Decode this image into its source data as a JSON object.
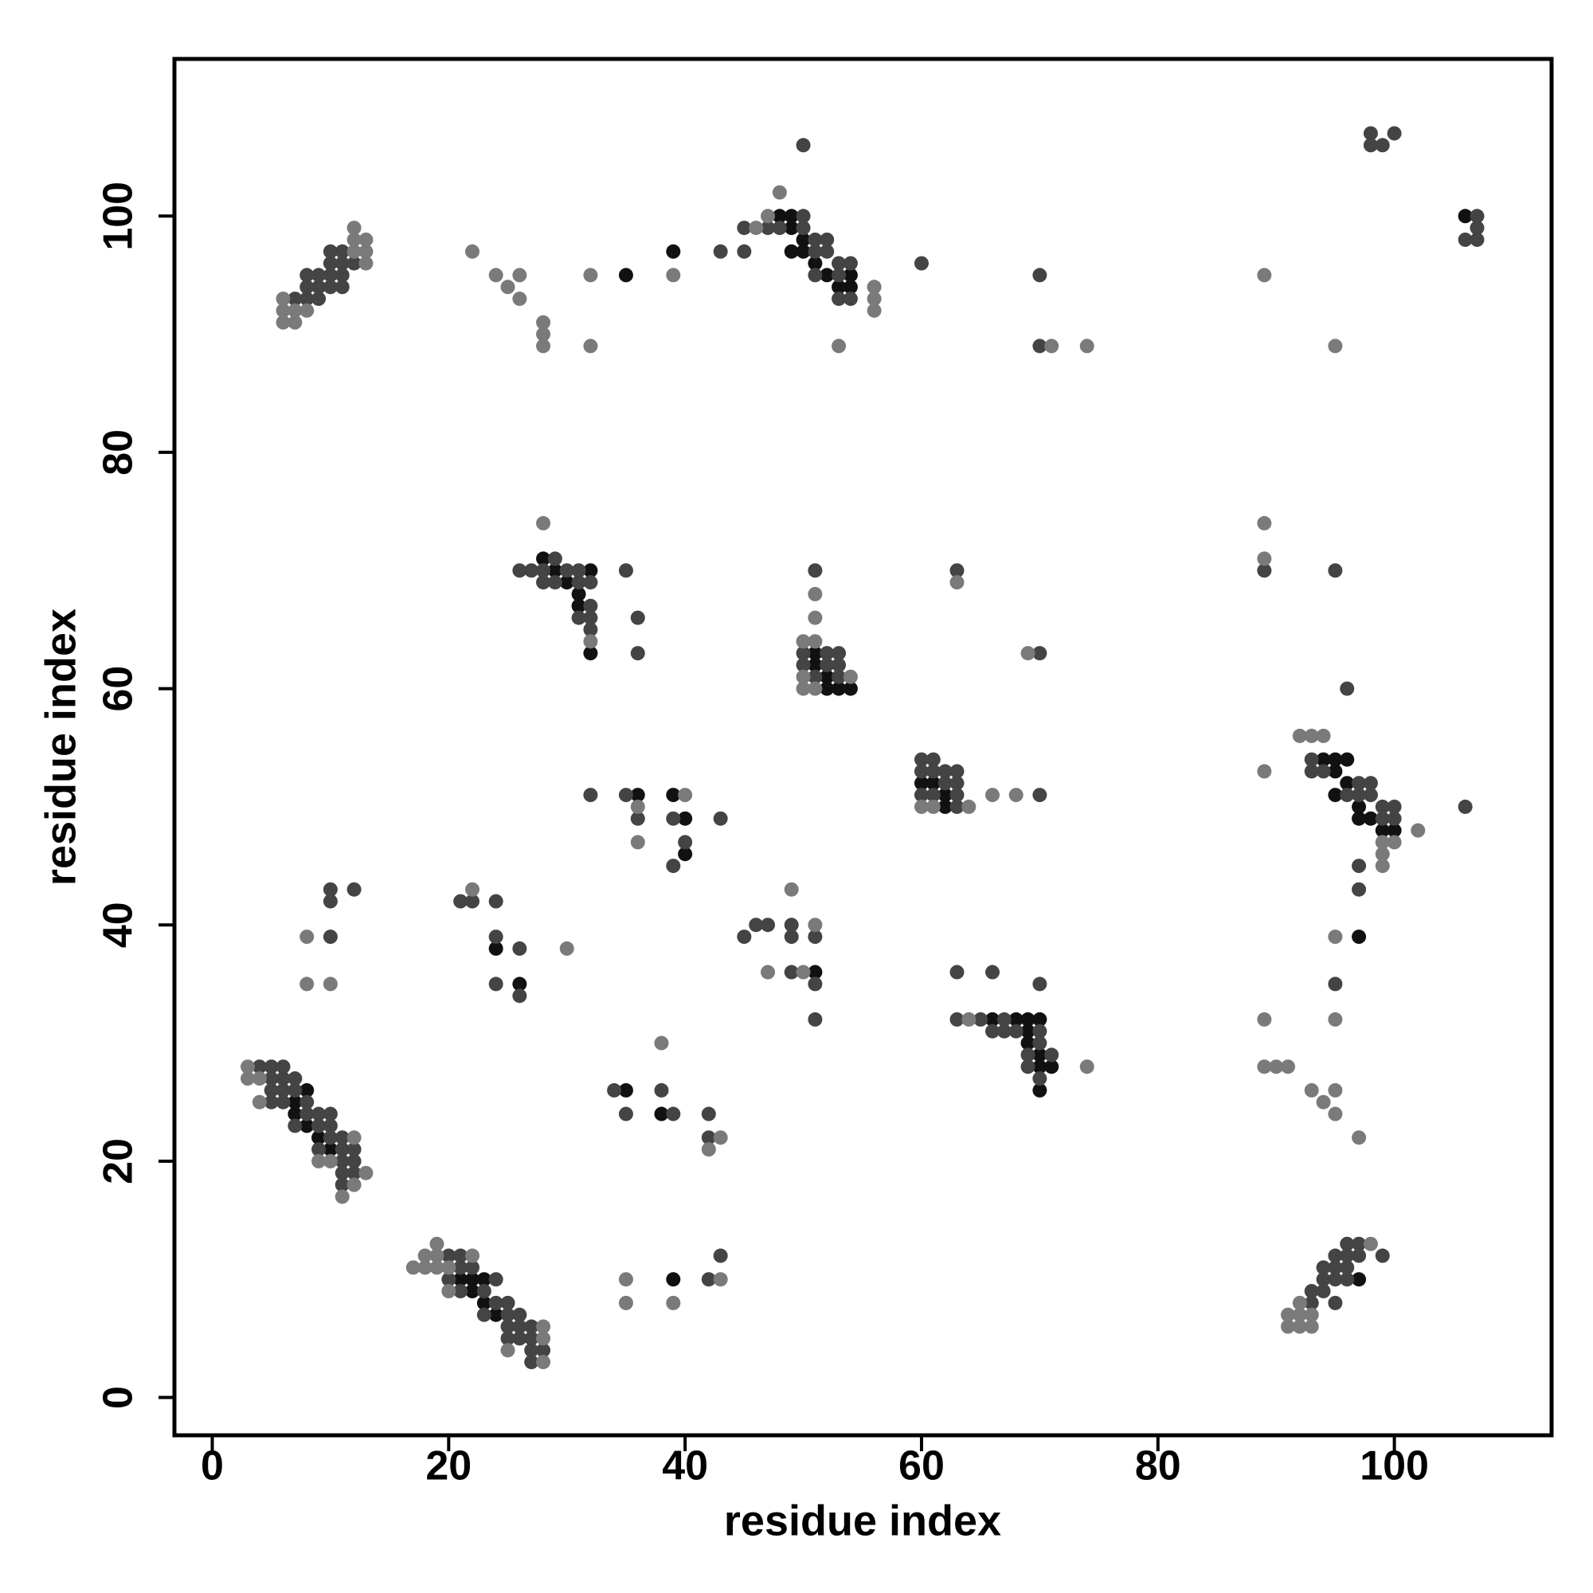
{
  "chart_data": {
    "type": "scatter",
    "x_label": "residue index",
    "y_label": "residue index",
    "xlim": [
      -3.2,
      113.3
    ],
    "ylim": [
      -3.2,
      113.3
    ],
    "xticks": [
      0,
      20,
      40,
      60,
      80,
      100
    ],
    "yticks": [
      0,
      20,
      40,
      60,
      80,
      100
    ],
    "series": [
      {
        "color": "#111111",
        "x": [
          7,
          8,
          9,
          10,
          8,
          7,
          21,
          22,
          23,
          24,
          23,
          22,
          48,
          49,
          49,
          50,
          49,
          50,
          51,
          52,
          53,
          54,
          54,
          35,
          39,
          28,
          29,
          30,
          31,
          32,
          31,
          32,
          51,
          51,
          52,
          52,
          53,
          54,
          60,
          61,
          62,
          62,
          94,
          95,
          96,
          95,
          96,
          95,
          97,
          98,
          97,
          99,
          100,
          66,
          68,
          69,
          70,
          69,
          69,
          70,
          70,
          71,
          70,
          36,
          39,
          40,
          40,
          24,
          26,
          51,
          35,
          38,
          39,
          106,
          97,
          97
        ],
        "values": [
          24,
          23,
          22,
          21,
          26,
          25,
          10,
          9,
          8,
          7,
          10,
          10,
          100,
          100,
          99,
          98,
          97,
          97,
          96,
          95,
          94,
          95,
          94,
          95,
          97,
          71,
          70,
          69,
          68,
          70,
          67,
          63,
          63,
          62,
          61,
          60,
          60,
          60,
          52,
          52,
          51,
          50,
          54,
          54,
          54,
          53,
          52,
          51,
          50,
          49,
          49,
          48,
          48,
          32,
          32,
          32,
          32,
          31,
          30,
          29,
          28,
          28,
          26,
          51,
          51,
          49,
          46,
          38,
          35,
          36,
          26,
          24,
          10,
          100,
          39,
          10
        ]
      },
      {
        "color": "#444444",
        "x": [
          5,
          6,
          5,
          6,
          7,
          5,
          6,
          7,
          5,
          6,
          8,
          8,
          9,
          10,
          7,
          9,
          10,
          9,
          10,
          11,
          11,
          12,
          11,
          12,
          11,
          12,
          11,
          4,
          20,
          21,
          21,
          22,
          20,
          21,
          23,
          24,
          24,
          25,
          25,
          26,
          23,
          25,
          26,
          27,
          26,
          27,
          25,
          27,
          27,
          28,
          10,
          11,
          10,
          11,
          12,
          8,
          9,
          10,
          11,
          9,
          10,
          11,
          8,
          9,
          8,
          7,
          50,
          47,
          48,
          50,
          50,
          51,
          52,
          51,
          52,
          53,
          54,
          51,
          53,
          53,
          54,
          45,
          45,
          43,
          60,
          70,
          70,
          26,
          27,
          28,
          29,
          30,
          31,
          28,
          29,
          31,
          32,
          32,
          31,
          32,
          32,
          35,
          36,
          36,
          50,
          52,
          53,
          50,
          52,
          53,
          51,
          53,
          51,
          60,
          61,
          60,
          61,
          62,
          63,
          62,
          63,
          60,
          61,
          63,
          63,
          63,
          70,
          70,
          93,
          93,
          94,
          97,
          98,
          96,
          97,
          98,
          99,
          100,
          99,
          100,
          97,
          97,
          96,
          106,
          89,
          95,
          63,
          66,
          70,
          63,
          65,
          67,
          66,
          67,
          68,
          70,
          70,
          69,
          71,
          69,
          70,
          32,
          35,
          36,
          39,
          40,
          39,
          43,
          10,
          10,
          12,
          10,
          21,
          22,
          24,
          24,
          26,
          24,
          26,
          45,
          46,
          47,
          49,
          49,
          51,
          49,
          51,
          51,
          95,
          34,
          35,
          38,
          39,
          42,
          42,
          42,
          43,
          98,
          100,
          98,
          99,
          107,
          107,
          106,
          107,
          96,
          97,
          95,
          96,
          97,
          99,
          94,
          95,
          96,
          95,
          96,
          94,
          93,
          94,
          95,
          93
        ],
        "values": [
          28,
          28,
          27,
          27,
          27,
          26,
          26,
          26,
          25,
          25,
          25,
          24,
          24,
          24,
          23,
          23,
          23,
          21,
          22,
          22,
          21,
          21,
          20,
          20,
          19,
          19,
          18,
          28,
          12,
          12,
          11,
          11,
          10,
          9,
          9,
          10,
          8,
          8,
          7,
          7,
          7,
          6,
          6,
          6,
          5,
          5,
          5,
          4,
          3,
          4,
          97,
          97,
          96,
          96,
          96,
          95,
          95,
          95,
          95,
          94,
          94,
          94,
          94,
          93,
          93,
          93,
          106,
          99,
          99,
          99,
          100,
          98,
          98,
          97,
          97,
          96,
          96,
          95,
          95,
          93,
          93,
          99,
          97,
          97,
          96,
          95,
          89,
          70,
          70,
          70,
          71,
          70,
          70,
          69,
          69,
          69,
          69,
          67,
          66,
          66,
          65,
          70,
          66,
          63,
          63,
          63,
          63,
          62,
          62,
          62,
          61,
          61,
          70,
          54,
          54,
          53,
          53,
          53,
          53,
          52,
          52,
          51,
          51,
          51,
          50,
          70,
          63,
          51,
          54,
          53,
          53,
          52,
          52,
          51,
          51,
          51,
          50,
          50,
          49,
          49,
          45,
          43,
          60,
          50,
          70,
          70,
          36,
          36,
          35,
          32,
          32,
          32,
          31,
          31,
          31,
          31,
          30,
          29,
          29,
          28,
          27,
          51,
          51,
          49,
          49,
          47,
          45,
          49,
          43,
          42,
          43,
          39,
          42,
          42,
          42,
          39,
          38,
          35,
          34,
          39,
          40,
          40,
          40,
          39,
          39,
          36,
          35,
          32,
          35,
          26,
          24,
          26,
          24,
          24,
          22,
          10,
          12,
          107,
          107,
          106,
          106,
          100,
          99,
          98,
          98,
          13,
          13,
          12,
          12,
          12,
          12,
          11,
          11,
          11,
          10,
          10,
          10,
          9,
          9,
          8,
          8
        ]
      },
      {
        "color": "#7a7a7a",
        "x": [
          3,
          3,
          4,
          4,
          9,
          10,
          12,
          12,
          13,
          11,
          19,
          18,
          19,
          22,
          17,
          18,
          19,
          20,
          20,
          25,
          28,
          28,
          28,
          12,
          12,
          13,
          12,
          13,
          13,
          6,
          7,
          8,
          6,
          7,
          6,
          22,
          24,
          25,
          26,
          26,
          28,
          28,
          28,
          32,
          32,
          39,
          48,
          47,
          46,
          56,
          56,
          56,
          53,
          71,
          74,
          89,
          95,
          28,
          32,
          51,
          51,
          50,
          51,
          50,
          50,
          51,
          54,
          63,
          69,
          60,
          61,
          64,
          66,
          68,
          92,
          93,
          94,
          102,
          99,
          100,
          99,
          99,
          89,
          89,
          89,
          74,
          64,
          36,
          36,
          40,
          8,
          8,
          10,
          22,
          30,
          49,
          51,
          47,
          50,
          89,
          95,
          89,
          90,
          91,
          93,
          95,
          94,
          95,
          97,
          95,
          38,
          43,
          42,
          35,
          35,
          39,
          43,
          98,
          92,
          91,
          92,
          93,
          91,
          92,
          93
        ],
        "values": [
          28,
          27,
          27,
          25,
          20,
          20,
          22,
          18,
          19,
          17,
          13,
          12,
          12,
          12,
          11,
          11,
          11,
          11,
          9,
          4,
          6,
          5,
          3,
          99,
          98,
          98,
          97,
          97,
          96,
          92,
          92,
          92,
          91,
          91,
          93,
          97,
          95,
          94,
          93,
          95,
          91,
          90,
          89,
          95,
          89,
          95,
          102,
          100,
          99,
          94,
          93,
          92,
          89,
          89,
          89,
          95,
          89,
          74,
          64,
          68,
          66,
          64,
          64,
          61,
          60,
          60,
          61,
          69,
          63,
          50,
          50,
          50,
          51,
          51,
          56,
          56,
          56,
          48,
          47,
          47,
          46,
          45,
          53,
          74,
          71,
          28,
          32,
          50,
          47,
          51,
          39,
          35,
          35,
          43,
          38,
          43,
          40,
          36,
          36,
          32,
          32,
          28,
          28,
          28,
          26,
          26,
          25,
          24,
          22,
          39,
          30,
          22,
          21,
          10,
          8,
          8,
          10,
          13,
          8,
          7,
          7,
          7,
          6,
          6,
          6
        ]
      }
    ]
  }
}
